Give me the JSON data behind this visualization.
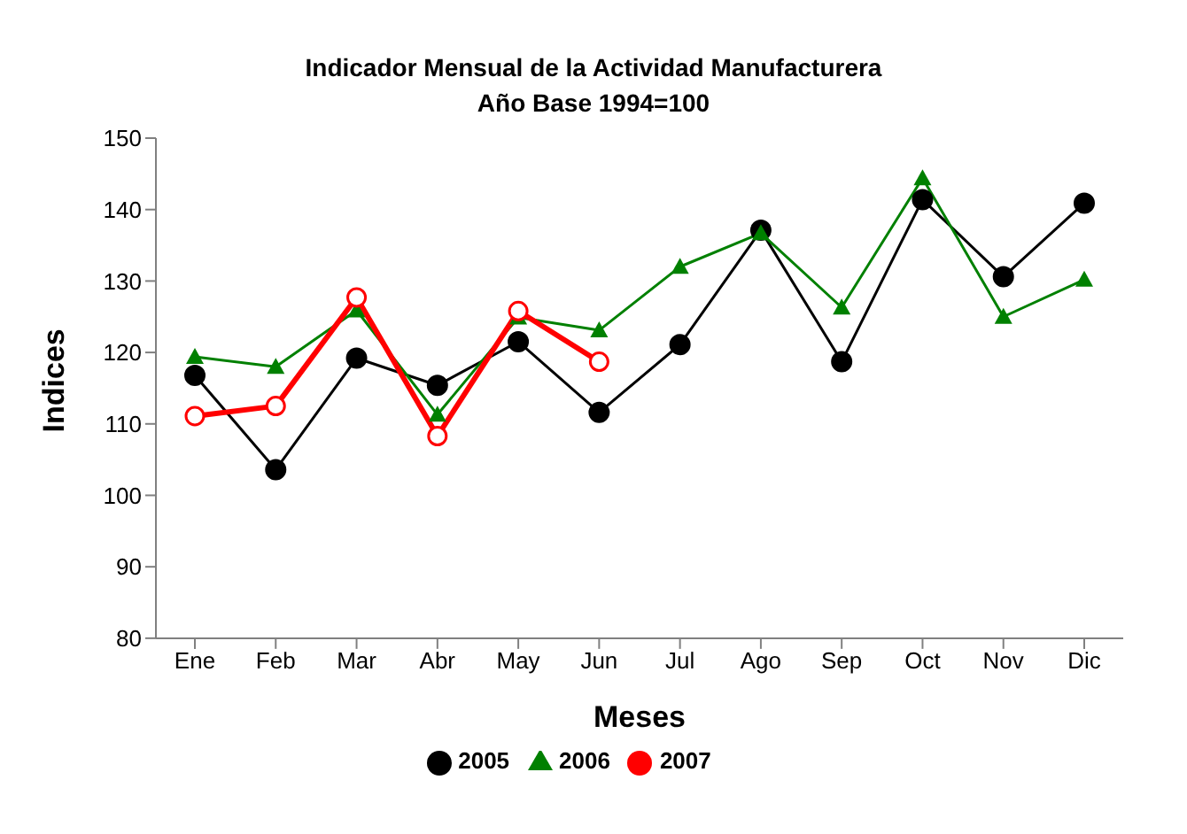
{
  "chart_data": {
    "type": "line",
    "title": "Indicador Mensual de la Actividad Manufacturera",
    "subtitle": "Año Base 1994=100",
    "xlabel": "Meses",
    "ylabel": "Indices",
    "categories": [
      "Ene",
      "Feb",
      "Mar",
      "Abr",
      "May",
      "Jun",
      "Jul",
      "Ago",
      "Sep",
      "Oct",
      "Nov",
      "Dic"
    ],
    "series": [
      {
        "name": "2005",
        "color": "#000000",
        "marker": "circle",
        "values": [
          116.8,
          103.6,
          119.2,
          115.4,
          121.5,
          111.6,
          121.1,
          137.1,
          118.7,
          141.4,
          130.6,
          140.9
        ]
      },
      {
        "name": "2006",
        "color": "#008000",
        "marker": "triangle",
        "values": [
          119.4,
          118.0,
          125.9,
          111.3,
          124.9,
          123.1,
          132.0,
          136.7,
          126.3,
          144.4,
          125.0,
          130.2
        ]
      },
      {
        "name": "2007",
        "color": "#ff0000",
        "marker": "circle",
        "values": [
          111.1,
          112.5,
          127.7,
          108.3,
          125.8,
          118.7,
          null,
          null,
          null,
          null,
          null,
          null
        ]
      }
    ],
    "ylim": [
      80,
      150
    ],
    "yticks": [
      80,
      90,
      100,
      110,
      120,
      130,
      140,
      150
    ],
    "legend": "bottom"
  }
}
